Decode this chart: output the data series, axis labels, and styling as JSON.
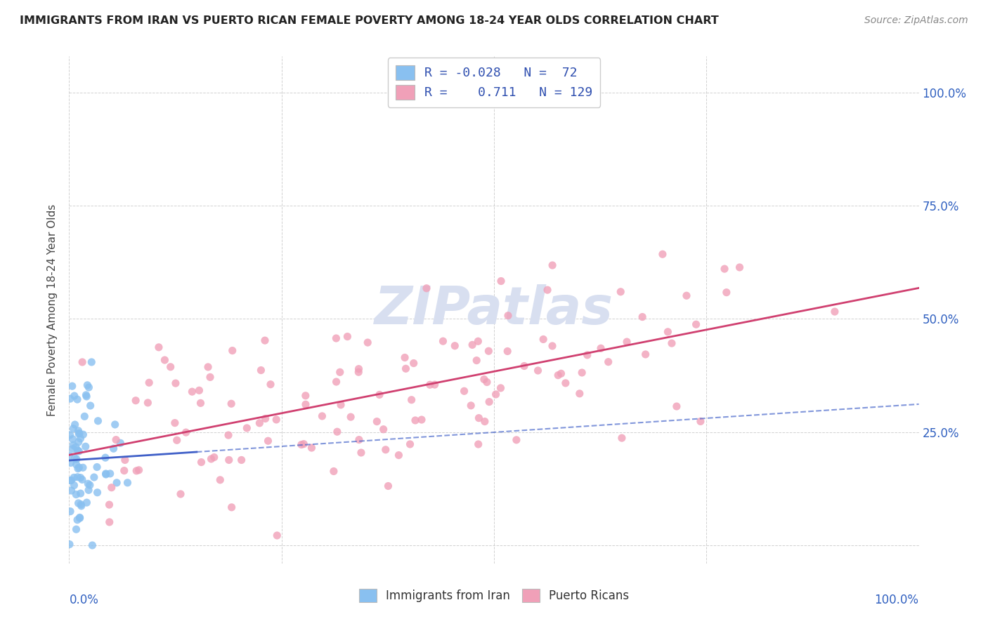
{
  "title": "IMMIGRANTS FROM IRAN VS PUERTO RICAN FEMALE POVERTY AMONG 18-24 YEAR OLDS CORRELATION CHART",
  "source": "Source: ZipAtlas.com",
  "ylabel": "Female Poverty Among 18-24 Year Olds",
  "scatter_color_iran": "#89c0f0",
  "scatter_color_pr": "#f0a0b8",
  "line_color_iran": "#4060c8",
  "line_color_pr": "#d04070",
  "legend_text_color": "#3050b0",
  "axis_label_color": "#3060c0",
  "background_color": "#ffffff",
  "grid_color": "#cccccc",
  "watermark_color": "#d8dff0",
  "title_color": "#222222",
  "source_color": "#888888",
  "ylabel_color": "#444444"
}
